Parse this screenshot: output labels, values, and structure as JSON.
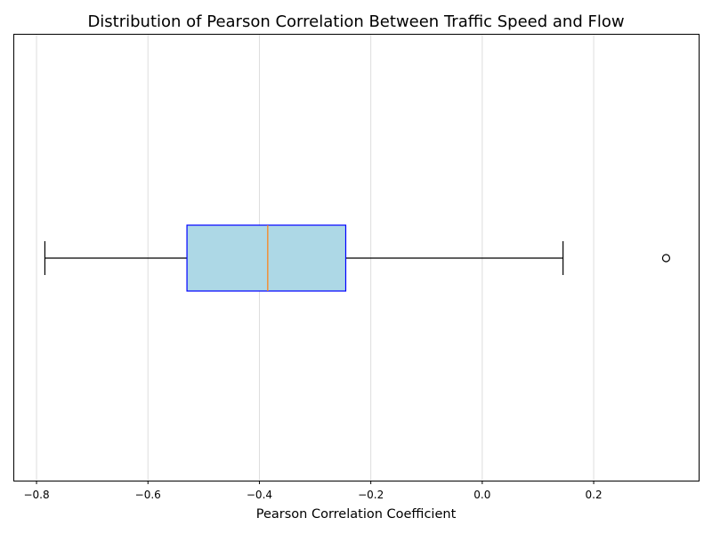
{
  "chart_data": {
    "type": "boxplot",
    "orientation": "horizontal",
    "title": "Distribution of Pearson Correlation Between Traffic Speed and Flow",
    "xlabel": "Pearson Correlation Coefficient",
    "ylabel": "",
    "xlim": [
      -0.84,
      0.39
    ],
    "xticks": [
      -0.8,
      -0.6,
      -0.4,
      -0.2,
      0.0,
      0.2
    ],
    "xtick_labels": [
      "−0.8",
      "−0.6",
      "−0.4",
      "−0.2",
      "0.0",
      "0.2"
    ],
    "grid": "x",
    "box": {
      "whisker_low": -0.785,
      "q1": -0.53,
      "median": -0.385,
      "q3": -0.245,
      "whisker_high": 0.145,
      "outliers": [
        0.33
      ]
    },
    "colors": {
      "box_fill": "#add8e6",
      "box_edge": "#0000ff",
      "median": "#ff7f0e",
      "whisker": "#000000",
      "grid": "#dddddd"
    }
  }
}
